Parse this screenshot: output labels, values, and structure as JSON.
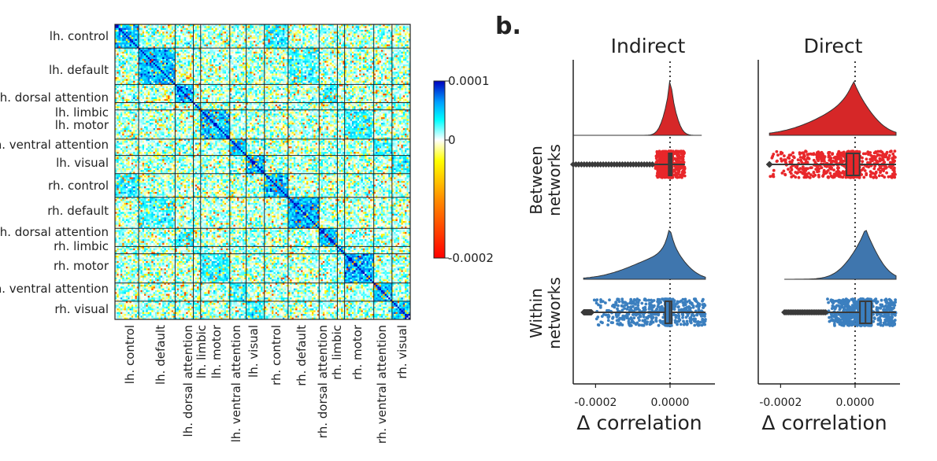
{
  "chart_data": [
    {
      "type": "heatmap",
      "panel_label": "",
      "row_labels": [
        "lh. control",
        "lh. default",
        "lh. dorsal attention",
        "lh. limbic",
        "lh. motor",
        "lh. ventral attention",
        "lh. visual",
        "rh. control",
        "rh. default",
        "rh. dorsal attention",
        "rh. limbic",
        "rh. motor",
        "rh. ventral attention",
        "rh. visual"
      ],
      "col_labels": [
        "lh. control",
        "lh. default",
        "lh. dorsal attention",
        "lh. limbic",
        "lh. motor",
        "lh. ventral attention",
        "lh. visual",
        "rh. control",
        "rh. default",
        "rh. dorsal attention",
        "rh. limbic",
        "rh. motor",
        "rh. ventral attention",
        "rh. visual"
      ],
      "network_sizes": [
        13,
        20,
        10,
        4,
        16,
        9,
        10,
        13,
        17,
        10,
        4,
        16,
        10,
        10
      ],
      "colorbar": {
        "ticks": [
          "0.0001",
          "0",
          "-0.0002"
        ],
        "min": -0.0002,
        "max": 0.0001,
        "colors": [
          "#ff0000",
          "#ff8c00",
          "#ffff00",
          "#ffffff",
          "#00ffff",
          "#00a0ff",
          "#0000c0"
        ]
      }
    },
    {
      "type": "raincloud",
      "panel_label": "b.",
      "facets": [
        "Indirect",
        "Direct"
      ],
      "row_groups": [
        {
          "label_line1": "Between",
          "label_line2": "networks",
          "color": "#d62728",
          "point_color": "#e8272a"
        },
        {
          "label_line1": "Within",
          "label_line2": "networks",
          "color": "#3f76ae",
          "point_color": "#3b7fbf"
        }
      ],
      "xlabel": "Δ correlation",
      "x_ticks": [
        "-0.0002",
        "0.0000"
      ],
      "x_tick_values": [
        -0.0002,
        0.0
      ],
      "xlim": [
        -0.00026,
        0.00011
      ],
      "boxes": {
        "Indirect": [
          {
            "q1": -3.5e-06,
            "median": 5e-07,
            "q3": 4.5e-06,
            "whisker_lo": -4e-05,
            "whisker_hi": 4e-05,
            "data_min": -0.00026,
            "data_max": 8.5e-05
          },
          {
            "q1": -1.3e-05,
            "median": -1e-06,
            "q3": 4e-06,
            "whisker_lo": -0.00021,
            "whisker_hi": 9.5e-05,
            "data_min": -0.000232,
            "data_max": 9.5e-05
          }
        ],
        "Direct": [
          {
            "q1": -2.3e-05,
            "median": -4e-06,
            "q3": 1.2e-05,
            "whisker_lo": -0.00023,
            "whisker_hi": 0.00011,
            "data_min": -0.00023,
            "data_max": 0.00011
          },
          {
            "q1": 1.3e-05,
            "median": 2.8e-05,
            "q3": 4.4e-05,
            "whisker_lo": -7.5e-05,
            "whisker_hi": 0.00011,
            "data_min": -0.00019,
            "data_max": 0.00011
          }
        ]
      }
    }
  ]
}
